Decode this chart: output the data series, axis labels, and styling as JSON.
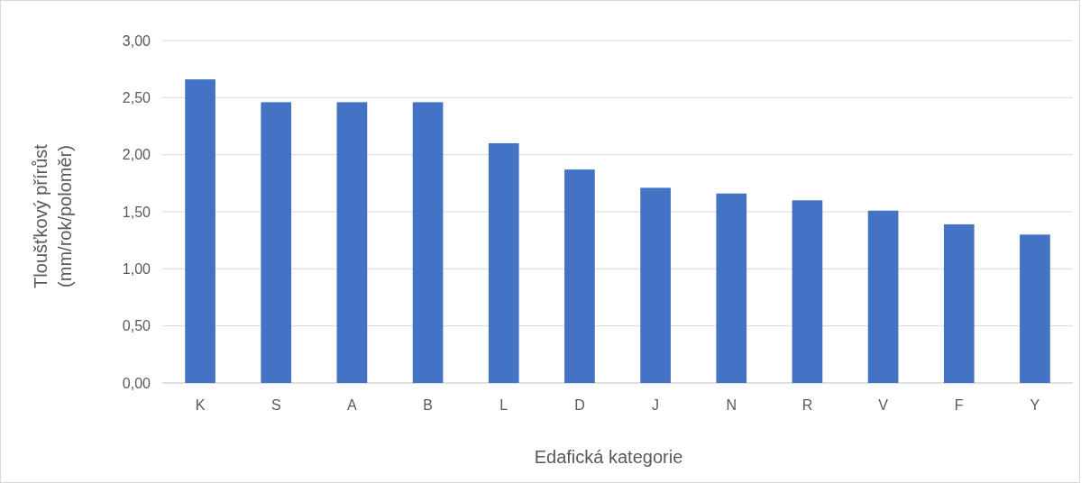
{
  "chart_data": {
    "type": "bar",
    "xlabel": "Edafická kategorie",
    "ylabel": "Tloušťkový přírůst\n(mm/rok/poloměr)",
    "categories": [
      "K",
      "S",
      "A",
      "B",
      "L",
      "D",
      "J",
      "N",
      "R",
      "V",
      "F",
      "Y"
    ],
    "values": [
      2.66,
      2.46,
      2.46,
      2.46,
      2.1,
      1.87,
      1.71,
      1.66,
      1.6,
      1.51,
      1.39,
      1.3
    ],
    "color": "#4472c4",
    "ylim": [
      0,
      3
    ],
    "yticks": [
      {
        "value": 0,
        "label": "0,00"
      },
      {
        "value": 0.5,
        "label": "0,50"
      },
      {
        "value": 1,
        "label": "1,00"
      },
      {
        "value": 1.5,
        "label": "1,50"
      },
      {
        "value": 2,
        "label": "2,00"
      },
      {
        "value": 2.5,
        "label": "2,50"
      },
      {
        "value": 3,
        "label": "3,00"
      }
    ],
    "grid": "y"
  }
}
